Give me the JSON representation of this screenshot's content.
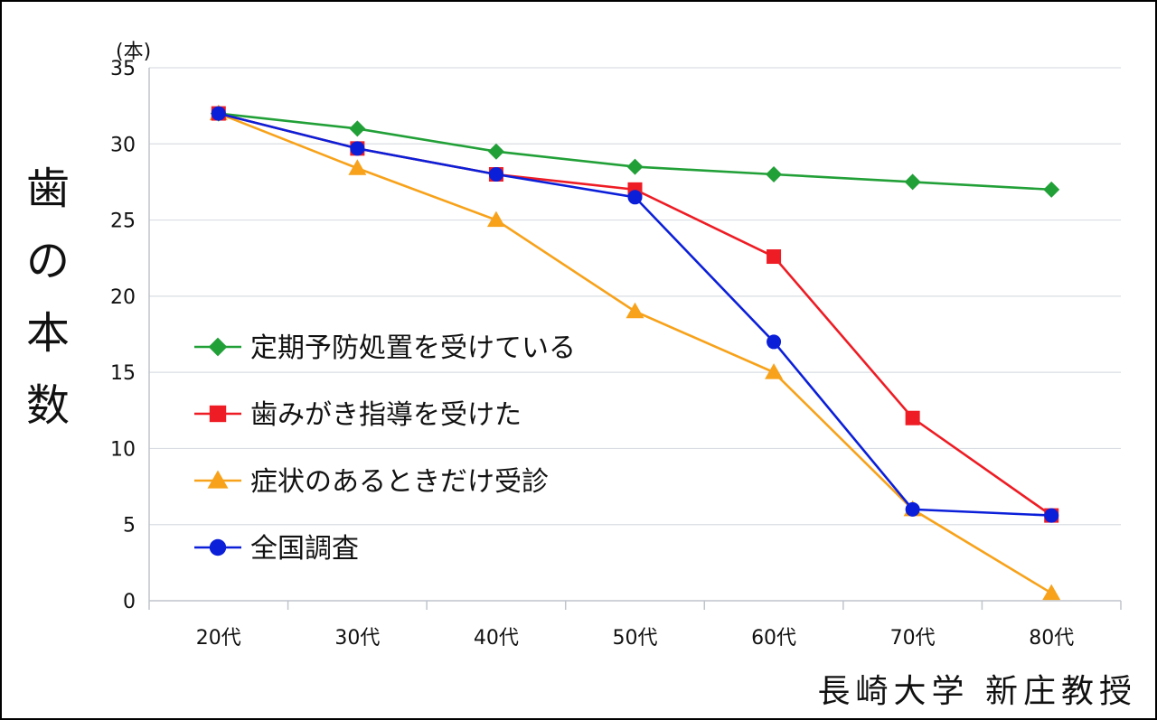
{
  "chart_data": {
    "type": "line",
    "unit_label": "(本)",
    "ylabel": "歯の本数",
    "categories": [
      "20代",
      "30代",
      "40代",
      "50代",
      "60代",
      "70代",
      "80代"
    ],
    "yticks": [
      "0",
      "5",
      "10",
      "15",
      "20",
      "25",
      "30",
      "35"
    ],
    "ylim": [
      0,
      35
    ],
    "grid": true,
    "legend_position": "left-center",
    "series": [
      {
        "name": "定期予防処置を受けている",
        "color": "#22a038",
        "marker": "diamond",
        "values": [
          32,
          31,
          29.5,
          28.5,
          28,
          27.5,
          27
        ]
      },
      {
        "name": "歯みがき指導を受けた",
        "color": "#ee1c24",
        "marker": "square",
        "values": [
          32,
          29.7,
          28,
          27,
          22.6,
          12,
          5.6
        ]
      },
      {
        "name": "症状のあるときだけ受診",
        "color": "#f7a21a",
        "marker": "triangle",
        "values": [
          32,
          28.4,
          25,
          19,
          15,
          6,
          0.5
        ]
      },
      {
        "name": "全国調査",
        "color": "#0b1fd9",
        "marker": "circle",
        "values": [
          32,
          29.7,
          28,
          26.5,
          17,
          6,
          5.6
        ]
      }
    ]
  },
  "credit": "長崎大学 新庄教授"
}
